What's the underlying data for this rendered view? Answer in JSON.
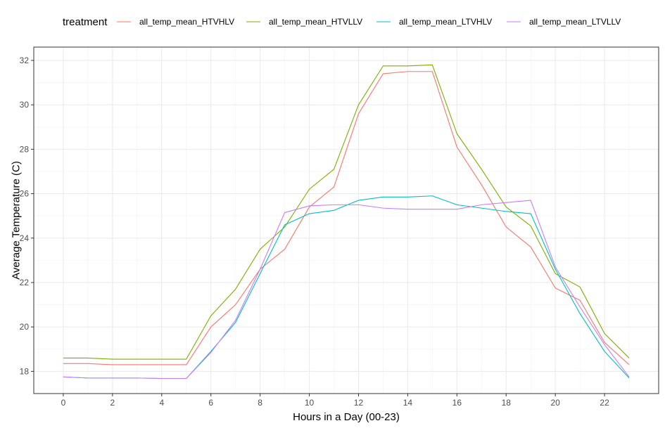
{
  "chart_data": {
    "type": "line",
    "xlabel": "Hours in a Day (00-23)",
    "ylabel": "Average Temperature (C)",
    "xlim": [
      -1.2,
      24.2
    ],
    "ylim": [
      17.0,
      32.6
    ],
    "x_ticks_major": [
      0,
      2,
      4,
      6,
      8,
      10,
      12,
      14,
      16,
      18,
      20,
      22
    ],
    "y_ticks_major": [
      18,
      20,
      22,
      24,
      26,
      28,
      30,
      32
    ],
    "grid": true,
    "legend": {
      "title": "treatment",
      "position": "top"
    },
    "x": [
      0,
      1,
      2,
      3,
      4,
      5,
      6,
      7,
      8,
      9,
      10,
      11,
      12,
      13,
      14,
      15,
      16,
      17,
      18,
      19,
      20,
      21,
      22,
      23
    ],
    "series": [
      {
        "name": "all_temp_mean_HTVHLV",
        "color": "#F8766D",
        "values": [
          18.35,
          18.35,
          18.3,
          18.3,
          18.3,
          18.3,
          20.0,
          21.0,
          22.6,
          23.5,
          25.4,
          26.3,
          29.6,
          31.4,
          31.5,
          31.5,
          28.1,
          26.4,
          24.5,
          23.6,
          21.75,
          21.2,
          19.3,
          18.3
        ]
      },
      {
        "name": "all_temp_mean_HTVLLV",
        "color": "#7CAE00",
        "values": [
          18.6,
          18.6,
          18.55,
          18.55,
          18.55,
          18.55,
          20.5,
          21.7,
          23.5,
          24.5,
          26.2,
          27.1,
          30.0,
          31.75,
          31.75,
          31.8,
          28.7,
          27.1,
          25.4,
          24.55,
          22.4,
          21.8,
          19.7,
          18.6
        ]
      },
      {
        "name": "all_temp_mean_LTVHLV",
        "color": "#00BFC4",
        "values": [
          17.75,
          17.7,
          17.7,
          17.7,
          17.68,
          17.68,
          18.9,
          20.2,
          22.4,
          24.6,
          25.1,
          25.25,
          25.7,
          25.85,
          25.85,
          25.9,
          25.5,
          25.35,
          25.2,
          25.1,
          22.6,
          20.6,
          18.9,
          17.7
        ]
      },
      {
        "name": "all_temp_mean_LTVLLV",
        "color": "#C77CFF",
        "values": [
          17.75,
          17.7,
          17.7,
          17.7,
          17.68,
          17.68,
          18.85,
          20.3,
          22.6,
          25.15,
          25.45,
          25.5,
          25.5,
          25.35,
          25.3,
          25.3,
          25.3,
          25.5,
          25.6,
          25.7,
          22.7,
          20.9,
          19.2,
          17.75
        ]
      }
    ]
  }
}
